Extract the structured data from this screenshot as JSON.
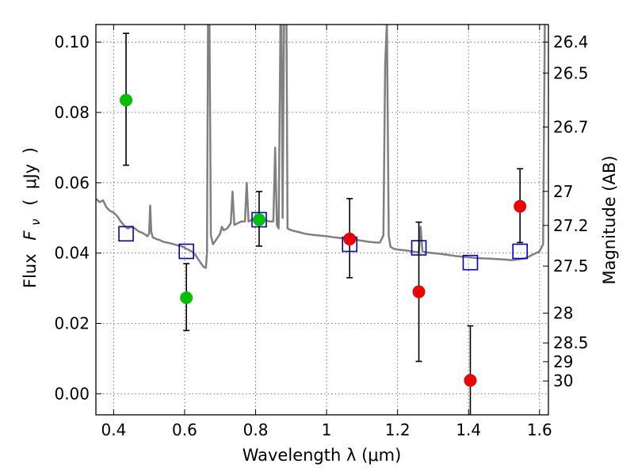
{
  "chart_data": {
    "type": "scatter",
    "title": "",
    "xlabel": "Wavelength  λ (μm)",
    "ylabel": "Flux  Fν  ( μJy )",
    "ylabel_parts": [
      "Flux",
      "F",
      "ν",
      "(",
      "μJy",
      ")"
    ],
    "y2label": "Magnitude (AB)",
    "xlim": [
      0.35,
      1.625
    ],
    "ylim": [
      -0.006,
      0.105
    ],
    "grid": true,
    "x_ticks": [
      0.4,
      0.6,
      0.8,
      1.0,
      1.2,
      1.4,
      1.6
    ],
    "x_tick_labels": [
      "0.4",
      "0.6",
      "0.8",
      "1",
      "1.2",
      "1.4",
      "1.6"
    ],
    "y_ticks": [
      0.0,
      0.02,
      0.04,
      0.06,
      0.08,
      0.1
    ],
    "y_tick_labels": [
      "0.00",
      "0.02",
      "0.04",
      "0.06",
      "0.08",
      "0.10"
    ],
    "y2_ticks": [
      {
        "label": "26.4",
        "value": 26.4
      },
      {
        "label": "26.5",
        "value": 26.5
      },
      {
        "label": "26.7",
        "value": 26.7
      },
      {
        "label": "27",
        "value": 27.0
      },
      {
        "label": "27.2",
        "value": 27.2
      },
      {
        "label": "27.5",
        "value": 27.5
      },
      {
        "label": "28",
        "value": 28.0
      },
      {
        "label": "28.5",
        "value": 28.5
      },
      {
        "label": "29",
        "value": 29.0
      },
      {
        "label": "30",
        "value": 30.0
      }
    ],
    "series": [
      {
        "name": "model spectrum",
        "kind": "line",
        "color": "#808080",
        "points": [
          [
            0.35,
            0.0555
          ],
          [
            0.36,
            0.0545
          ],
          [
            0.37,
            0.055
          ],
          [
            0.38,
            0.053
          ],
          [
            0.39,
            0.052
          ],
          [
            0.4,
            0.0515
          ],
          [
            0.41,
            0.0505
          ],
          [
            0.42,
            0.049
          ],
          [
            0.43,
            0.0478
          ],
          [
            0.44,
            0.047
          ],
          [
            0.45,
            0.0475
          ],
          [
            0.46,
            0.047
          ],
          [
            0.47,
            0.0462
          ],
          [
            0.48,
            0.0458
          ],
          [
            0.49,
            0.0452
          ],
          [
            0.495,
            0.0448
          ],
          [
            0.5,
            0.0455
          ],
          [
            0.503,
            0.0535
          ],
          [
            0.506,
            0.046
          ],
          [
            0.51,
            0.0445
          ],
          [
            0.52,
            0.044
          ],
          [
            0.53,
            0.0437
          ],
          [
            0.54,
            0.0432
          ],
          [
            0.55,
            0.043
          ],
          [
            0.56,
            0.0428
          ],
          [
            0.57,
            0.0425
          ],
          [
            0.58,
            0.0422
          ],
          [
            0.59,
            0.042
          ],
          [
            0.6,
            0.0415
          ],
          [
            0.61,
            0.041
          ],
          [
            0.62,
            0.0405
          ],
          [
            0.63,
            0.0395
          ],
          [
            0.64,
            0.038
          ],
          [
            0.65,
            0.0365
          ],
          [
            0.655,
            0.036
          ],
          [
            0.66,
            0.0358
          ],
          [
            0.663,
            0.04
          ],
          [
            0.666,
            0.106
          ],
          [
            0.67,
            0.106
          ],
          [
            0.674,
            0.045
          ],
          [
            0.68,
            0.0425
          ],
          [
            0.69,
            0.044
          ],
          [
            0.7,
            0.0455
          ],
          [
            0.705,
            0.0475
          ],
          [
            0.71,
            0.0465
          ],
          [
            0.72,
            0.047
          ],
          [
            0.73,
            0.0485
          ],
          [
            0.735,
            0.0575
          ],
          [
            0.74,
            0.048
          ],
          [
            0.75,
            0.0485
          ],
          [
            0.76,
            0.049
          ],
          [
            0.77,
            0.049
          ],
          [
            0.775,
            0.06
          ],
          [
            0.78,
            0.049
          ],
          [
            0.79,
            0.0495
          ],
          [
            0.8,
            0.05
          ],
          [
            0.81,
            0.0495
          ],
          [
            0.82,
            0.0495
          ],
          [
            0.83,
            0.0492
          ],
          [
            0.84,
            0.049
          ],
          [
            0.85,
            0.049
          ],
          [
            0.855,
            0.07
          ],
          [
            0.86,
            0.048
          ],
          [
            0.865,
            0.047
          ],
          [
            0.87,
            0.106
          ],
          [
            0.873,
            0.106
          ],
          [
            0.876,
            0.05
          ],
          [
            0.88,
            0.106
          ],
          [
            0.883,
            0.106
          ],
          [
            0.887,
            0.106
          ],
          [
            0.89,
            0.047
          ],
          [
            0.9,
            0.0465
          ],
          [
            0.92,
            0.046
          ],
          [
            0.94,
            0.0455
          ],
          [
            0.96,
            0.0452
          ],
          [
            0.98,
            0.045
          ],
          [
            1.0,
            0.0448
          ],
          [
            1.02,
            0.0445
          ],
          [
            1.04,
            0.0443
          ],
          [
            1.06,
            0.044
          ],
          [
            1.08,
            0.0438
          ],
          [
            1.1,
            0.0435
          ],
          [
            1.12,
            0.0432
          ],
          [
            1.14,
            0.043
          ],
          [
            1.15,
            0.043
          ],
          [
            1.16,
            0.045
          ],
          [
            1.165,
            0.0935
          ],
          [
            1.17,
            0.106
          ],
          [
            1.175,
            0.045
          ],
          [
            1.18,
            0.0418
          ],
          [
            1.19,
            0.0412
          ],
          [
            1.2,
            0.041
          ],
          [
            1.22,
            0.0408
          ],
          [
            1.24,
            0.0405
          ],
          [
            1.26,
            0.0402
          ],
          [
            1.265,
            0.0475
          ],
          [
            1.27,
            0.0405
          ],
          [
            1.28,
            0.0402
          ],
          [
            1.3,
            0.04
          ],
          [
            1.32,
            0.0398
          ],
          [
            1.34,
            0.0395
          ],
          [
            1.36,
            0.0392
          ],
          [
            1.38,
            0.039
          ],
          [
            1.4,
            0.0388
          ],
          [
            1.42,
            0.0386
          ],
          [
            1.44,
            0.0385
          ],
          [
            1.46,
            0.0384
          ],
          [
            1.48,
            0.0383
          ],
          [
            1.5,
            0.0382
          ],
          [
            1.52,
            0.038
          ],
          [
            1.54,
            0.0382
          ],
          [
            1.56,
            0.0385
          ],
          [
            1.58,
            0.0395
          ],
          [
            1.6,
            0.0405
          ],
          [
            1.61,
            0.0425
          ],
          [
            1.615,
            0.106
          ],
          [
            1.625,
            0.106
          ]
        ]
      },
      {
        "name": "model photometry",
        "kind": "square",
        "color": "#0000cc",
        "points": [
          [
            0.435,
            0.0455
          ],
          [
            0.605,
            0.0405
          ],
          [
            0.81,
            0.0495
          ],
          [
            1.065,
            0.0425
          ],
          [
            1.26,
            0.0415
          ],
          [
            1.405,
            0.0373
          ],
          [
            1.545,
            0.0405
          ]
        ]
      },
      {
        "name": "observed (green)",
        "kind": "point",
        "color": "#00c000",
        "points": [
          {
            "x": 0.435,
            "y": 0.0835,
            "err_lo": 0.065,
            "err_hi": 0.1025
          },
          {
            "x": 0.605,
            "y": 0.0273,
            "err_lo": 0.018,
            "err_hi": 0.037
          },
          {
            "x": 0.81,
            "y": 0.0495,
            "err_lo": 0.042,
            "err_hi": 0.0575
          }
        ]
      },
      {
        "name": "observed (red)",
        "kind": "point",
        "color": "#ee0000",
        "points": [
          {
            "x": 1.065,
            "y": 0.044,
            "err_lo": 0.033,
            "err_hi": 0.0555
          },
          {
            "x": 1.26,
            "y": 0.029,
            "err_lo": 0.0092,
            "err_hi": 0.0488
          },
          {
            "x": 1.405,
            "y": 0.0038,
            "err_lo": -0.007,
            "err_hi": 0.0193
          },
          {
            "x": 1.545,
            "y": 0.0533,
            "err_lo": 0.043,
            "err_hi": 0.064
          }
        ]
      }
    ]
  }
}
